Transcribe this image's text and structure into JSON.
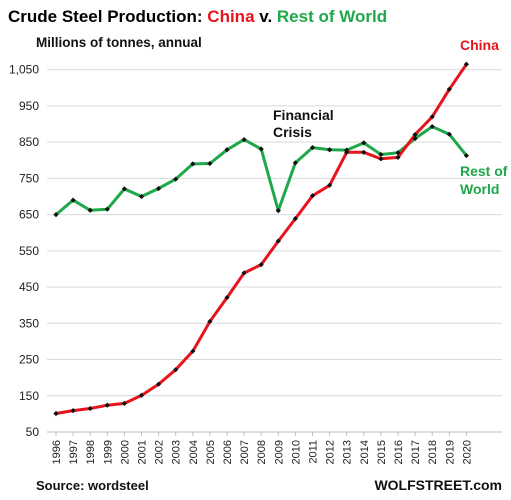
{
  "chart_data": {
    "type": "line",
    "title_parts": [
      {
        "text": "Crude Steel Production: ",
        "color": "#000000"
      },
      {
        "text": "China",
        "color": "#e8141c"
      },
      {
        "text": " v. ",
        "color": "#000000"
      },
      {
        "text": "Rest of World",
        "color": "#1fa84a"
      }
    ],
    "subtitle": "Millions of tonnes, annual",
    "x": [
      1996,
      1997,
      1998,
      1999,
      2000,
      2001,
      2002,
      2003,
      2004,
      2005,
      2006,
      2007,
      2008,
      2009,
      2010,
      2011,
      2012,
      2013,
      2014,
      2015,
      2016,
      2017,
      2018,
      2019,
      2020
    ],
    "x_tick_labels": [
      "1996",
      "1997",
      "1998",
      "1999",
      "2000",
      "2001",
      "2002",
      "2003",
      "2004",
      "2005",
      "2006",
      "2007",
      "2008",
      "2009",
      "2010",
      "2011",
      "2012",
      "2013",
      "2014",
      "2015",
      "2016",
      "2017",
      "2018",
      "2019",
      "2020"
    ],
    "y_ticks": [
      50,
      150,
      250,
      350,
      450,
      550,
      650,
      750,
      850,
      950,
      1050
    ],
    "y_tick_labels": [
      "50",
      "150",
      "250",
      "350",
      "450",
      "550",
      "650",
      "750",
      "850",
      "950",
      "1,050"
    ],
    "ylim": [
      50,
      1090
    ],
    "series": [
      {
        "name": "China",
        "color": "#e8141c",
        "values": [
          101,
          109,
          115,
          124,
          129,
          151,
          182,
          222,
          273,
          355,
          421,
          489,
          512,
          577,
          639,
          702,
          731,
          822,
          822,
          804,
          808,
          871,
          920,
          996,
          1065
        ]
      },
      {
        "name": "Rest of World",
        "color": "#1fa84a",
        "values": [
          650,
          690,
          662,
          665,
          721,
          700,
          722,
          748,
          790,
          791,
          829,
          857,
          831,
          661,
          793,
          835,
          829,
          828,
          848,
          816,
          821,
          860,
          893,
          872,
          813
        ]
      }
    ],
    "annotations": {
      "financial_crisis": [
        "Financial",
        "Crisis"
      ],
      "china_label": "China",
      "row_label": [
        "Rest of",
        "World"
      ]
    },
    "source": "Source: wordsteel",
    "brand": "WOLFSTREET.com",
    "grid": "horizontal"
  }
}
